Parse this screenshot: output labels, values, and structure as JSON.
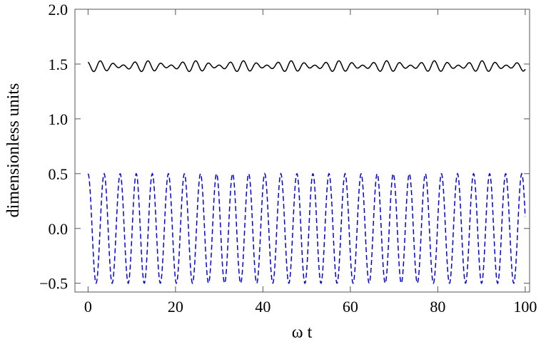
{
  "chart_data": {
    "type": "line",
    "xlabel": "ω t",
    "ylabel": "dimensionless units",
    "xlim": [
      -3,
      101
    ],
    "ylim": [
      -0.58,
      2.0
    ],
    "x_ticks": [
      0,
      20,
      40,
      60,
      80,
      100
    ],
    "x_tick_labels": [
      "0",
      "20",
      "40",
      "60",
      "80",
      "100"
    ],
    "y_ticks": [
      -0.5,
      0.0,
      0.5,
      1.0,
      1.5,
      2.0
    ],
    "y_tick_labels": [
      "−0.5",
      "0.0",
      "0.5",
      "1.0",
      "1.5",
      "2.0"
    ],
    "grid": false,
    "series": [
      {
        "style": "solid",
        "color": "#000000",
        "x_range": [
          0,
          100
        ],
        "sample_step": 0.1,
        "formula": "y = 1.48 + 0.03*cos(2.3*x) + 0.02*cos(1.73*x + 1.2)",
        "y_mean": 1.48,
        "y_min": 1.43,
        "y_max": 1.54
      },
      {
        "style": "dashed",
        "color": "#0000ee",
        "x_range": [
          0,
          100
        ],
        "sample_step": 0.1,
        "formula": "y = 0.5*cos(1.71*x)",
        "y_min": -0.5,
        "y_max": 0.5
      }
    ]
  }
}
